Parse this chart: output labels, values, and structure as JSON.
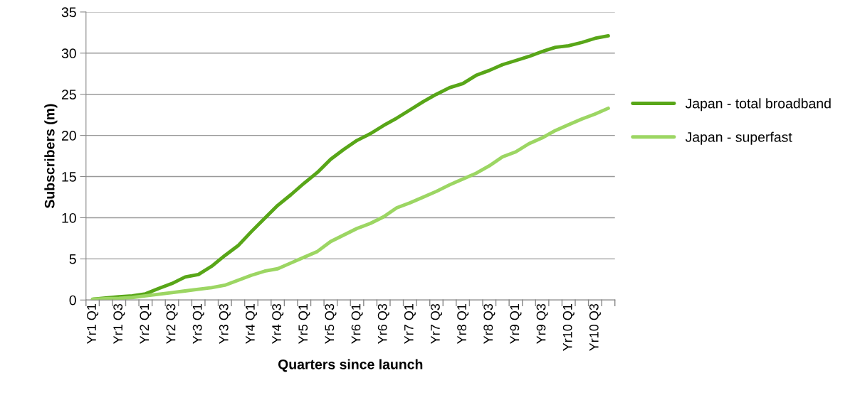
{
  "chart_data": {
    "type": "line",
    "xlabel": "Quarters since launch",
    "ylabel": "Subscribers (m)",
    "categories": [
      "Yr1 Q1",
      null,
      "Yr1 Q3",
      null,
      "Yr2 Q1",
      null,
      "Yr2 Q3",
      null,
      "Yr3 Q1",
      null,
      "Yr3 Q3",
      null,
      "Yr4 Q1",
      null,
      "Yr4 Q3",
      null,
      "Yr5 Q1",
      null,
      "Yr5 Q3",
      null,
      "Yr6 Q1",
      null,
      "Yr6 Q3",
      null,
      "Yr7 Q1",
      null,
      "Yr7 Q3",
      null,
      "Yr8 Q1",
      null,
      "Yr8 Q3",
      null,
      "Yr9 Q1",
      null,
      "Yr9 Q3",
      null,
      "Yr10 Q1",
      null,
      "Yr10 Q3",
      null
    ],
    "series": [
      {
        "name": "Japan - total broadband",
        "color": "#58a618",
        "values": [
          0.1,
          0.25,
          0.4,
          0.5,
          0.75,
          1.4,
          2.0,
          2.8,
          3.1,
          4.1,
          5.4,
          6.6,
          8.3,
          9.9,
          11.5,
          12.8,
          14.2,
          15.5,
          17.1,
          18.3,
          19.4,
          20.2,
          21.2,
          22.1,
          23.1,
          24.1,
          25.0,
          25.8,
          26.3,
          27.3,
          27.9,
          28.6,
          29.1,
          29.6,
          30.2,
          30.7,
          30.9,
          31.3,
          31.8,
          32.1
        ]
      },
      {
        "name": "Japan - superfast",
        "color": "#9cd663",
        "values": [
          0.1,
          0.15,
          0.2,
          0.3,
          0.5,
          0.7,
          0.9,
          1.1,
          1.3,
          1.5,
          1.8,
          2.4,
          3.0,
          3.5,
          3.8,
          4.5,
          5.2,
          5.9,
          7.1,
          7.9,
          8.7,
          9.3,
          10.1,
          11.2,
          11.8,
          12.5,
          13.2,
          14.0,
          14.7,
          15.4,
          16.3,
          17.4,
          18.0,
          19.0,
          19.7,
          20.6,
          21.3,
          22.0,
          22.6,
          23.3
        ]
      }
    ],
    "ylim": [
      0,
      35
    ],
    "yticks": [
      0,
      5,
      10,
      15,
      20,
      25,
      30,
      35
    ],
    "grid": "y",
    "legend": "right",
    "marker": "none",
    "line_style": "solid"
  }
}
